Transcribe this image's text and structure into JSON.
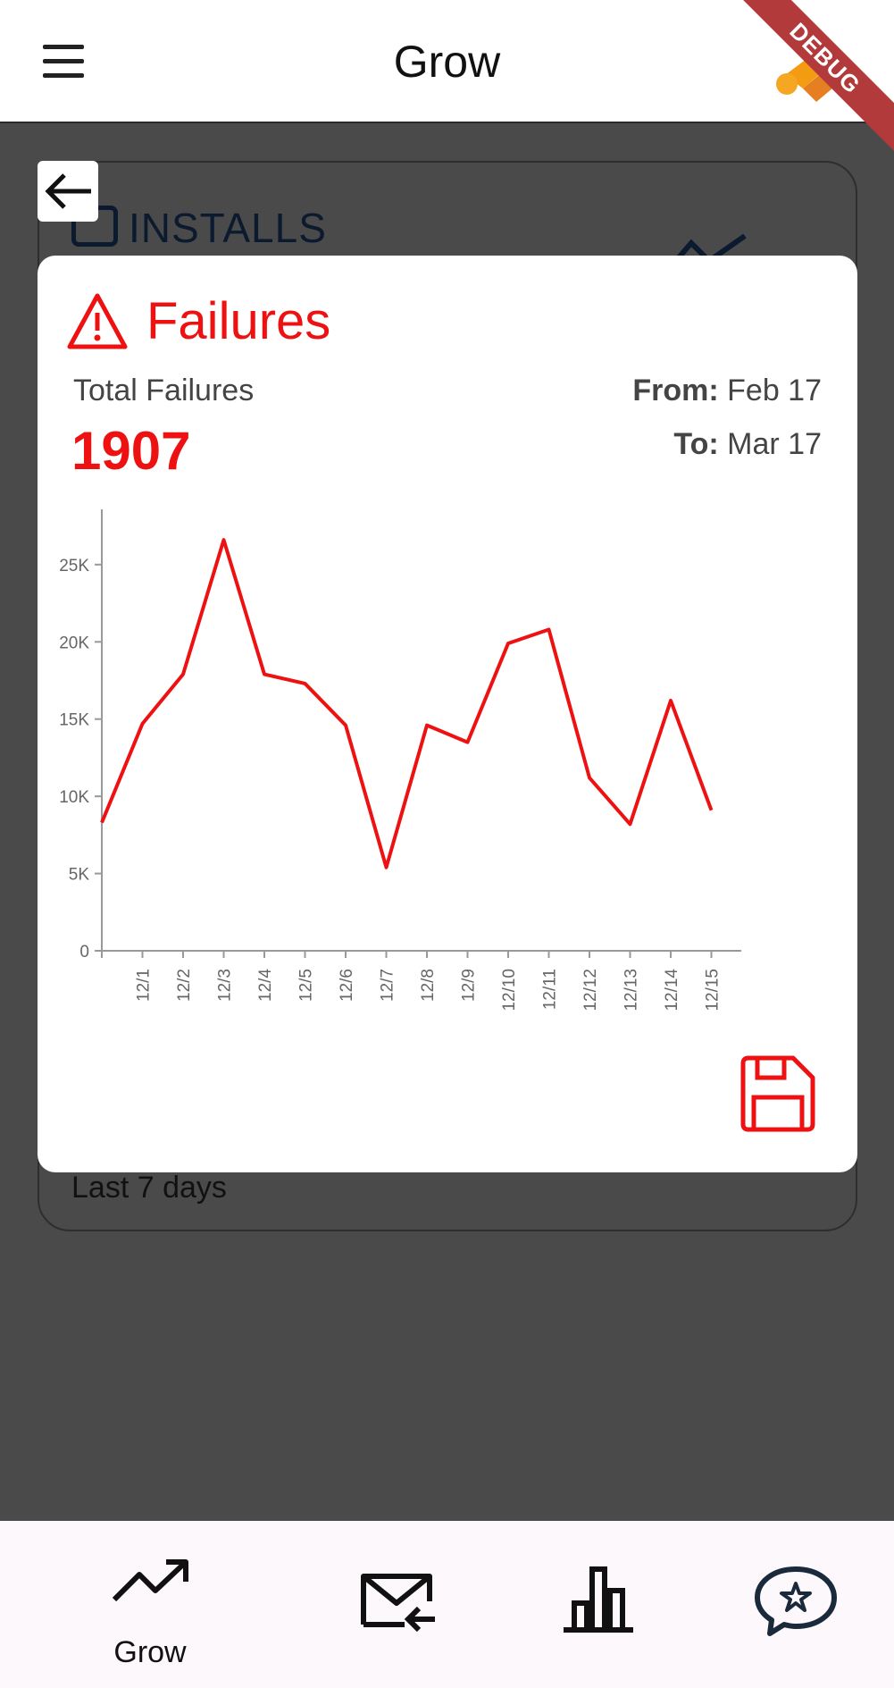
{
  "appbar": {
    "title": "Grow"
  },
  "debug_banner": {
    "text": "DEBUG"
  },
  "background_card": {
    "label": "INSTALLS",
    "period": "Last 7 days"
  },
  "dialog": {
    "title": "Failures",
    "total_label": "Total Failures",
    "total_value": "1907",
    "from_label": "From:",
    "from_value": "Feb 17",
    "to_label": "To:",
    "to_value": "Mar 17"
  },
  "colors": {
    "accent": "#ee1111",
    "scrim": "#4a4a4a",
    "nav_bg": "#fcf8fc"
  },
  "chart_data": {
    "type": "line",
    "x": [
      "",
      "12/1",
      "12/2",
      "12/3",
      "12/4",
      "12/5",
      "12/6",
      "12/7",
      "12/8",
      "12/9",
      "12/10",
      "12/11",
      "12/12",
      "12/13",
      "12/14",
      "12/15"
    ],
    "series": [
      {
        "values": [
          8300,
          14700,
          17900,
          26600,
          17900,
          17300,
          14600,
          5400,
          14600,
          13500,
          19900,
          20800,
          11200,
          8200,
          16200,
          9100
        ]
      }
    ],
    "y_ticks": [
      "0",
      "5K",
      "10K",
      "15K",
      "20K",
      "25K"
    ],
    "ylim": [
      0,
      28000
    ],
    "title": "",
    "xlabel": "",
    "ylabel": "",
    "grid": false
  },
  "bottom_nav": {
    "items": [
      {
        "label": "Grow",
        "icon": "trending-up-icon"
      },
      {
        "label": "",
        "icon": "mail-inbox-icon"
      },
      {
        "label": "",
        "icon": "bar-chart-icon"
      },
      {
        "label": "",
        "icon": "review-star-icon"
      }
    ]
  }
}
